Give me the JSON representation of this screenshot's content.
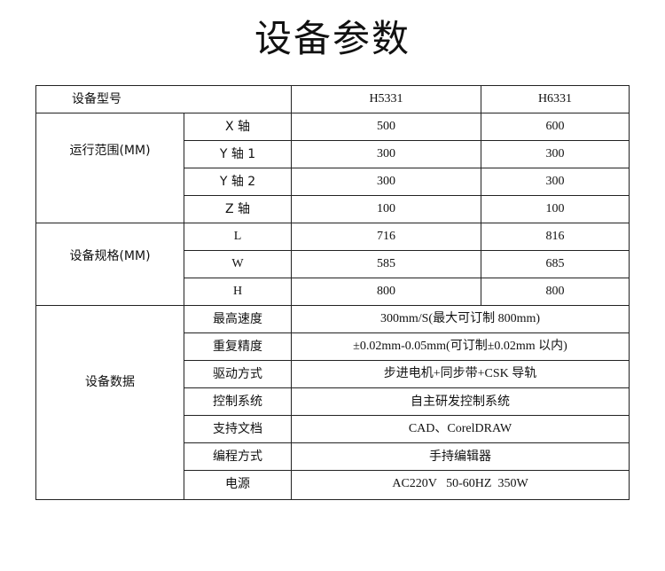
{
  "title": "设备参数",
  "header": {
    "label": "设备型号",
    "models": [
      "H5331",
      "H6331"
    ]
  },
  "groups": {
    "range": {
      "label": "运行范围(MM)",
      "rows": [
        {
          "name": "X 轴",
          "values": [
            "500",
            "600"
          ]
        },
        {
          "name": "Y 轴 1",
          "values": [
            "300",
            "300"
          ]
        },
        {
          "name": "Y 轴 2",
          "values": [
            "300",
            "300"
          ]
        },
        {
          "name": "Z 轴",
          "values": [
            "100",
            "100"
          ]
        }
      ]
    },
    "size": {
      "label": "设备规格(MM)",
      "rows": [
        {
          "name": "L",
          "values": [
            "716",
            "816"
          ]
        },
        {
          "name": "W",
          "values": [
            "585",
            "685"
          ]
        },
        {
          "name": "H",
          "values": [
            "800",
            "800"
          ]
        }
      ]
    },
    "data": {
      "label": "设备数据",
      "rows": [
        {
          "name": "最高速度",
          "value": "300mm/S(最大可订制 800mm)"
        },
        {
          "name": "重复精度",
          "value": "±0.02mm-0.05mm(可订制±0.02mm 以内)"
        },
        {
          "name": "驱动方式",
          "value": "步进电机+同步带+CSK 导轨"
        },
        {
          "name": "控制系统",
          "value": "自主研发控制系统"
        },
        {
          "name": "支持文档",
          "value": "CAD、CorelDRAW"
        },
        {
          "name": "编程方式",
          "value": "手持编辑器"
        },
        {
          "name": "电源",
          "value": "AC220V   50-60HZ  350W"
        }
      ]
    }
  }
}
